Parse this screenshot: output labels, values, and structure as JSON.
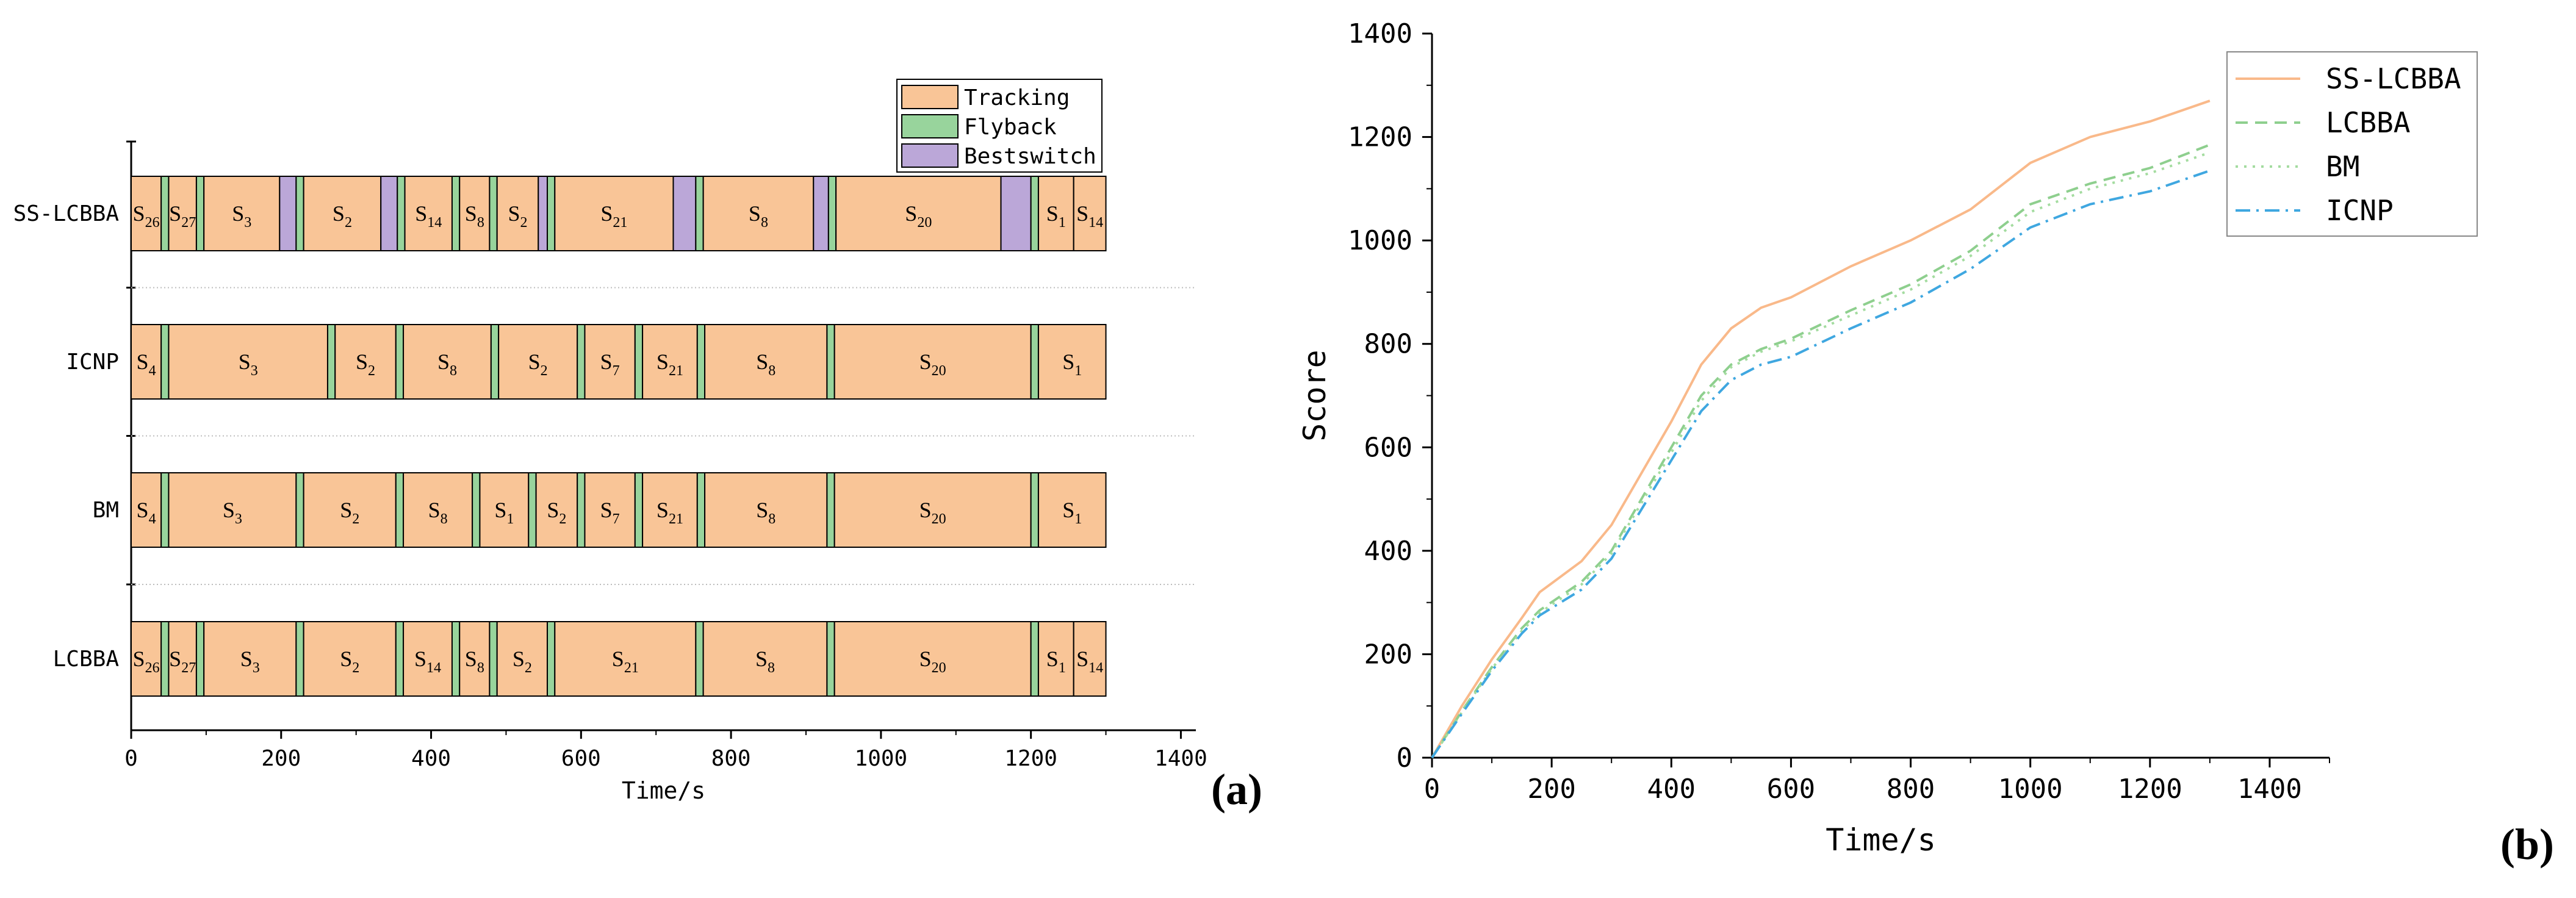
{
  "panels": {
    "a_label": "(a)",
    "b_label": "(b)"
  },
  "chart_data": [
    {
      "type": "gantt",
      "xlabel": "Time/s",
      "xlim": [
        0,
        1420
      ],
      "xticks": [
        0,
        200,
        400,
        600,
        800,
        1000,
        1200,
        1400
      ],
      "grid": false,
      "legend_position": "top-right",
      "phase_colors": {
        "Tracking": "#f9c597",
        "Flyback": "#98d49c",
        "Bestswitch": "#bba7d8"
      },
      "legend": [
        "Tracking",
        "Flyback",
        "Bestswitch"
      ],
      "rows": [
        {
          "name": "SS-LCBBA",
          "segments": [
            {
              "phase": "Tracking",
              "start": 0,
              "end": 40,
              "label": "S",
              "sub": "26"
            },
            {
              "phase": "Flyback",
              "start": 40,
              "end": 50
            },
            {
              "phase": "Tracking",
              "start": 50,
              "end": 87,
              "label": "S",
              "sub": "27"
            },
            {
              "phase": "Flyback",
              "start": 87,
              "end": 97
            },
            {
              "phase": "Tracking",
              "start": 97,
              "end": 198,
              "label": "S",
              "sub": "3"
            },
            {
              "phase": "Bestswitch",
              "start": 198,
              "end": 220
            },
            {
              "phase": "Flyback",
              "start": 220,
              "end": 230
            },
            {
              "phase": "Tracking",
              "start": 230,
              "end": 333,
              "label": "S",
              "sub": "2"
            },
            {
              "phase": "Bestswitch",
              "start": 333,
              "end": 355
            },
            {
              "phase": "Flyback",
              "start": 355,
              "end": 365
            },
            {
              "phase": "Tracking",
              "start": 365,
              "end": 428,
              "label": "S",
              "sub": "14"
            },
            {
              "phase": "Flyback",
              "start": 428,
              "end": 438
            },
            {
              "phase": "Tracking",
              "start": 438,
              "end": 478,
              "label": "S",
              "sub": "8"
            },
            {
              "phase": "Flyback",
              "start": 478,
              "end": 488
            },
            {
              "phase": "Tracking",
              "start": 488,
              "end": 543,
              "label": "S",
              "sub": "2"
            },
            {
              "phase": "Bestswitch",
              "start": 543,
              "end": 555
            },
            {
              "phase": "Flyback",
              "start": 555,
              "end": 565
            },
            {
              "phase": "Tracking",
              "start": 565,
              "end": 723,
              "label": "S",
              "sub": "21"
            },
            {
              "phase": "Bestswitch",
              "start": 723,
              "end": 753
            },
            {
              "phase": "Flyback",
              "start": 753,
              "end": 763
            },
            {
              "phase": "Tracking",
              "start": 763,
              "end": 910,
              "label": "S",
              "sub": "8"
            },
            {
              "phase": "Bestswitch",
              "start": 910,
              "end": 930
            },
            {
              "phase": "Flyback",
              "start": 930,
              "end": 940
            },
            {
              "phase": "Tracking",
              "start": 940,
              "end": 1160,
              "label": "S",
              "sub": "20"
            },
            {
              "phase": "Bestswitch",
              "start": 1160,
              "end": 1200
            },
            {
              "phase": "Flyback",
              "start": 1200,
              "end": 1210
            },
            {
              "phase": "Tracking",
              "start": 1210,
              "end": 1257,
              "label": "S",
              "sub": "1"
            },
            {
              "phase": "Tracking",
              "start": 1257,
              "end": 1300,
              "label": "S",
              "sub": "14"
            }
          ]
        },
        {
          "name": "ICNP",
          "segments": [
            {
              "phase": "Tracking",
              "start": 0,
              "end": 40,
              "label": "S",
              "sub": "4"
            },
            {
              "phase": "Flyback",
              "start": 40,
              "end": 50
            },
            {
              "phase": "Tracking",
              "start": 50,
              "end": 262,
              "label": "S",
              "sub": "3"
            },
            {
              "phase": "Flyback",
              "start": 262,
              "end": 272
            },
            {
              "phase": "Tracking",
              "start": 272,
              "end": 353,
              "label": "S",
              "sub": "2"
            },
            {
              "phase": "Flyback",
              "start": 353,
              "end": 363
            },
            {
              "phase": "Tracking",
              "start": 363,
              "end": 480,
              "label": "S",
              "sub": "8"
            },
            {
              "phase": "Flyback",
              "start": 480,
              "end": 490
            },
            {
              "phase": "Tracking",
              "start": 490,
              "end": 595,
              "label": "S",
              "sub": "2"
            },
            {
              "phase": "Flyback",
              "start": 595,
              "end": 605
            },
            {
              "phase": "Tracking",
              "start": 605,
              "end": 672,
              "label": "S",
              "sub": "7"
            },
            {
              "phase": "Flyback",
              "start": 672,
              "end": 682
            },
            {
              "phase": "Tracking",
              "start": 682,
              "end": 755,
              "label": "S",
              "sub": "21"
            },
            {
              "phase": "Flyback",
              "start": 755,
              "end": 765
            },
            {
              "phase": "Tracking",
              "start": 765,
              "end": 928,
              "label": "S",
              "sub": "8"
            },
            {
              "phase": "Flyback",
              "start": 928,
              "end": 938
            },
            {
              "phase": "Tracking",
              "start": 938,
              "end": 1200,
              "label": "S",
              "sub": "20"
            },
            {
              "phase": "Flyback",
              "start": 1200,
              "end": 1210
            },
            {
              "phase": "Tracking",
              "start": 1210,
              "end": 1300,
              "label": "S",
              "sub": "1"
            }
          ]
        },
        {
          "name": "BM",
          "segments": [
            {
              "phase": "Tracking",
              "start": 0,
              "end": 40,
              "label": "S",
              "sub": "4"
            },
            {
              "phase": "Flyback",
              "start": 40,
              "end": 50
            },
            {
              "phase": "Tracking",
              "start": 50,
              "end": 220,
              "label": "S",
              "sub": "3"
            },
            {
              "phase": "Flyback",
              "start": 220,
              "end": 230
            },
            {
              "phase": "Tracking",
              "start": 230,
              "end": 353,
              "label": "S",
              "sub": "2"
            },
            {
              "phase": "Flyback",
              "start": 353,
              "end": 363
            },
            {
              "phase": "Tracking",
              "start": 363,
              "end": 455,
              "label": "S",
              "sub": "8"
            },
            {
              "phase": "Flyback",
              "start": 455,
              "end": 465
            },
            {
              "phase": "Tracking",
              "start": 465,
              "end": 530,
              "label": "S",
              "sub": "1"
            },
            {
              "phase": "Flyback",
              "start": 530,
              "end": 540
            },
            {
              "phase": "Tracking",
              "start": 540,
              "end": 595,
              "label": "S",
              "sub": "2"
            },
            {
              "phase": "Flyback",
              "start": 595,
              "end": 605
            },
            {
              "phase": "Tracking",
              "start": 605,
              "end": 672,
              "label": "S",
              "sub": "7"
            },
            {
              "phase": "Flyback",
              "start": 672,
              "end": 682
            },
            {
              "phase": "Tracking",
              "start": 682,
              "end": 755,
              "label": "S",
              "sub": "21"
            },
            {
              "phase": "Flyback",
              "start": 755,
              "end": 765
            },
            {
              "phase": "Tracking",
              "start": 765,
              "end": 928,
              "label": "S",
              "sub": "8"
            },
            {
              "phase": "Flyback",
              "start": 928,
              "end": 938
            },
            {
              "phase": "Tracking",
              "start": 938,
              "end": 1200,
              "label": "S",
              "sub": "20"
            },
            {
              "phase": "Flyback",
              "start": 1200,
              "end": 1210
            },
            {
              "phase": "Tracking",
              "start": 1210,
              "end": 1300,
              "label": "S",
              "sub": "1"
            }
          ]
        },
        {
          "name": "LCBBA",
          "segments": [
            {
              "phase": "Tracking",
              "start": 0,
              "end": 40,
              "label": "S",
              "sub": "26"
            },
            {
              "phase": "Flyback",
              "start": 40,
              "end": 50
            },
            {
              "phase": "Tracking",
              "start": 50,
              "end": 87,
              "label": "S",
              "sub": "27"
            },
            {
              "phase": "Flyback",
              "start": 87,
              "end": 97
            },
            {
              "phase": "Tracking",
              "start": 97,
              "end": 220,
              "label": "S",
              "sub": "3"
            },
            {
              "phase": "Flyback",
              "start": 220,
              "end": 230
            },
            {
              "phase": "Tracking",
              "start": 230,
              "end": 353,
              "label": "S",
              "sub": "2"
            },
            {
              "phase": "Flyback",
              "start": 353,
              "end": 363
            },
            {
              "phase": "Tracking",
              "start": 363,
              "end": 428,
              "label": "S",
              "sub": "14"
            },
            {
              "phase": "Flyback",
              "start": 428,
              "end": 438
            },
            {
              "phase": "Tracking",
              "start": 438,
              "end": 478,
              "label": "S",
              "sub": "8"
            },
            {
              "phase": "Flyback",
              "start": 478,
              "end": 488
            },
            {
              "phase": "Tracking",
              "start": 488,
              "end": 555,
              "label": "S",
              "sub": "2"
            },
            {
              "phase": "Flyback",
              "start": 555,
              "end": 565
            },
            {
              "phase": "Tracking",
              "start": 565,
              "end": 753,
              "label": "S",
              "sub": "21"
            },
            {
              "phase": "Flyback",
              "start": 753,
              "end": 763
            },
            {
              "phase": "Tracking",
              "start": 763,
              "end": 928,
              "label": "S",
              "sub": "8"
            },
            {
              "phase": "Flyback",
              "start": 928,
              "end": 938
            },
            {
              "phase": "Tracking",
              "start": 938,
              "end": 1200,
              "label": "S",
              "sub": "20"
            },
            {
              "phase": "Flyback",
              "start": 1200,
              "end": 1210
            },
            {
              "phase": "Tracking",
              "start": 1210,
              "end": 1257,
              "label": "S",
              "sub": "1"
            },
            {
              "phase": "Tracking",
              "start": 1257,
              "end": 1300,
              "label": "S",
              "sub": "14"
            }
          ]
        }
      ]
    },
    {
      "type": "line",
      "xlabel": "Time/s",
      "ylabel": "Score",
      "xlim": [
        0,
        1500
      ],
      "ylim": [
        0,
        1400
      ],
      "xticks": [
        0,
        200,
        400,
        600,
        800,
        1000,
        1200,
        1400
      ],
      "yticks": [
        0,
        200,
        400,
        600,
        800,
        1000,
        1200,
        1400
      ],
      "grid": false,
      "legend_position": "top-right",
      "x": [
        0,
        50,
        100,
        150,
        180,
        250,
        300,
        400,
        450,
        500,
        550,
        600,
        700,
        800,
        900,
        1000,
        1100,
        1200,
        1300
      ],
      "series": [
        {
          "name": "SS-LCBBA",
          "color": "#f9b98a",
          "dash": "solid",
          "values": [
            0,
            100,
            190,
            270,
            320,
            380,
            450,
            650,
            760,
            830,
            870,
            890,
            950,
            1000,
            1060,
            1150,
            1200,
            1230,
            1270
          ]
        },
        {
          "name": "LCBBA",
          "color": "#8ecf8e",
          "dash": "dash",
          "values": [
            0,
            90,
            175,
            250,
            285,
            340,
            400,
            600,
            700,
            760,
            790,
            810,
            865,
            915,
            980,
            1070,
            1110,
            1140,
            1185
          ]
        },
        {
          "name": "BM",
          "color": "#a4dca0",
          "dash": "dot",
          "values": [
            0,
            88,
            172,
            245,
            280,
            335,
            395,
            590,
            690,
            755,
            785,
            805,
            855,
            905,
            970,
            1055,
            1100,
            1130,
            1170
          ]
        },
        {
          "name": "ICNP",
          "color": "#3fa7e0",
          "dash": "dashdot",
          "values": [
            0,
            85,
            168,
            240,
            275,
            325,
            385,
            575,
            670,
            730,
            760,
            775,
            830,
            880,
            945,
            1025,
            1070,
            1095,
            1135
          ]
        }
      ]
    }
  ]
}
